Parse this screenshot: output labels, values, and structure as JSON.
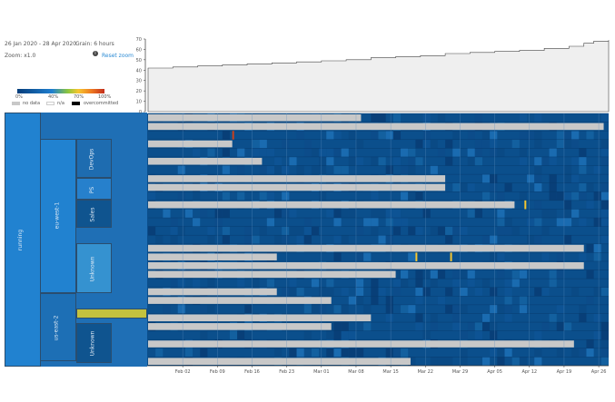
{
  "header": {
    "date_range": "26 Jan 2020 - 28 Apr 2020",
    "grain": "Grain: 6 hours",
    "zoom": "Zoom: x1.0",
    "reset_zoom": "Reset zoom",
    "info_icon": "info-icon"
  },
  "legend": {
    "ticks": [
      "0%",
      "40%",
      "70%",
      "100%"
    ],
    "no_data": "no data",
    "na": "n/a",
    "overcommitted": "overcommitted",
    "colors": {
      "no_data": "#c8c8c8",
      "na": "#ffffff",
      "overcommitted": "#000000"
    }
  },
  "hierarchy": {
    "state": "running",
    "regions": [
      "eu-west-1",
      "us-east-2"
    ],
    "teams": [
      "DevOps",
      "PS",
      "Sales",
      "Unknown",
      "Unknown"
    ]
  },
  "chart_data": [
    {
      "type": "area",
      "title": "",
      "ylabel": "",
      "ylim": [
        0,
        70
      ],
      "yticks": [
        "0",
        "10",
        "20",
        "30",
        "40",
        "50",
        "60",
        "70"
      ],
      "x_days": [
        0,
        5,
        10,
        15,
        20,
        25,
        30,
        35,
        40,
        45,
        50,
        55,
        60,
        65,
        70,
        75,
        80,
        85,
        88,
        90,
        93
      ],
      "values": [
        42,
        43,
        44,
        45,
        46,
        47,
        48,
        49,
        50,
        52,
        53,
        54,
        56,
        57,
        58,
        59,
        61,
        63,
        66,
        68,
        69
      ]
    },
    {
      "type": "heatmap",
      "xlabel": "",
      "start": "26 Jan 2020",
      "days": 93,
      "xticks": [
        "Feb 02",
        "Feb 09",
        "Feb 16",
        "Feb 23",
        "Mar 01",
        "Mar 08",
        "Mar 15",
        "Mar 22",
        "Mar 29",
        "Apr 05",
        "Apr 12",
        "Apr 19",
        "Apr 26"
      ],
      "no_data_until_days": [
        43,
        92,
        0,
        17,
        0,
        23,
        0,
        60,
        60,
        0,
        74,
        0,
        0,
        0,
        0,
        88,
        26,
        88,
        50,
        0,
        26,
        37,
        0,
        45,
        37,
        0,
        86,
        0,
        53
      ],
      "highlights": [
        {
          "row": 2,
          "day": 17,
          "color": "#c8401c"
        },
        {
          "row": 16,
          "day": 54,
          "color": "#f6c630"
        },
        {
          "row": 16,
          "day": 61,
          "color": "#f6c630"
        },
        {
          "row": 10,
          "day": 76,
          "color": "#f6c630"
        }
      ]
    }
  ]
}
